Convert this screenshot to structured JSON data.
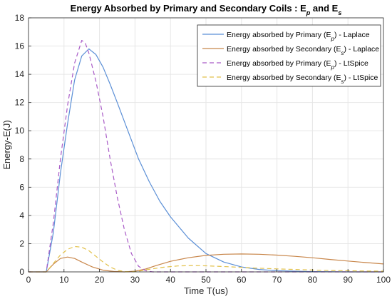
{
  "chart_data": {
    "type": "line",
    "title_parts": [
      {
        "text": "Energy Absorbed by Primary and Secondary Coils : E",
        "sub": false
      },
      {
        "text": "p",
        "sub": true
      },
      {
        "text": " and E",
        "sub": false
      },
      {
        "text": "s",
        "sub": true
      }
    ],
    "xlabel": "Time T(us)",
    "ylabel": "Energy-E(J)",
    "xlim": [
      0,
      100
    ],
    "ylim": [
      0,
      18
    ],
    "xticks": [
      0,
      10,
      20,
      30,
      40,
      50,
      60,
      70,
      80,
      90,
      100
    ],
    "yticks": [
      0,
      2,
      4,
      6,
      8,
      10,
      12,
      14,
      16,
      18
    ],
    "grid": true,
    "legend_position": "top-right",
    "series": [
      {
        "name_parts": [
          {
            "text": "Energy absorbed by Primary (E",
            "sub": false
          },
          {
            "text": "p",
            "sub": true
          },
          {
            "text": ") - Laplace",
            "sub": false
          }
        ],
        "color": "#5b8fd6",
        "dash": "solid",
        "points": [
          [
            0,
            0
          ],
          [
            5,
            0
          ],
          [
            7,
            2.8
          ],
          [
            9,
            7
          ],
          [
            11,
            10.5
          ],
          [
            13,
            13.6
          ],
          [
            15,
            15.3
          ],
          [
            17,
            15.8
          ],
          [
            19,
            15.4
          ],
          [
            21,
            14.5
          ],
          [
            23,
            13.3
          ],
          [
            25,
            12
          ],
          [
            28,
            10
          ],
          [
            31,
            8
          ],
          [
            34,
            6.4
          ],
          [
            37,
            5
          ],
          [
            40,
            3.9
          ],
          [
            45,
            2.4
          ],
          [
            50,
            1.3
          ],
          [
            55,
            0.7
          ],
          [
            60,
            0.35
          ],
          [
            65,
            0.17
          ],
          [
            70,
            0.08
          ],
          [
            80,
            0.02
          ],
          [
            90,
            0
          ],
          [
            100,
            0
          ]
        ]
      },
      {
        "name_parts": [
          {
            "text": "Energy absorbed by Secondary (E",
            "sub": false
          },
          {
            "text": "s",
            "sub": true
          },
          {
            "text": ") - Laplace",
            "sub": false
          }
        ],
        "color": "#c8864a",
        "dash": "solid",
        "points": [
          [
            0,
            0
          ],
          [
            5,
            0
          ],
          [
            7,
            0.55
          ],
          [
            9,
            0.95
          ],
          [
            11,
            1.05
          ],
          [
            13,
            0.95
          ],
          [
            15,
            0.7
          ],
          [
            18,
            0.35
          ],
          [
            21,
            0.12
          ],
          [
            24,
            0.03
          ],
          [
            27,
            0
          ],
          [
            30,
            0.05
          ],
          [
            33,
            0.2
          ],
          [
            36,
            0.45
          ],
          [
            40,
            0.75
          ],
          [
            45,
            1.0
          ],
          [
            50,
            1.17
          ],
          [
            55,
            1.25
          ],
          [
            60,
            1.27
          ],
          [
            65,
            1.25
          ],
          [
            70,
            1.19
          ],
          [
            75,
            1.1
          ],
          [
            80,
            1.0
          ],
          [
            85,
            0.88
          ],
          [
            90,
            0.77
          ],
          [
            95,
            0.66
          ],
          [
            100,
            0.56
          ]
        ]
      },
      {
        "name_parts": [
          {
            "text": "Energy absorbed by Primary (E",
            "sub": false
          },
          {
            "text": "p",
            "sub": true
          },
          {
            "text": ") - LtSpice",
            "sub": false
          }
        ],
        "color": "#a95bc7",
        "dash": "dashed",
        "points": [
          [
            0,
            0
          ],
          [
            5,
            0
          ],
          [
            7,
            3.5
          ],
          [
            9,
            8
          ],
          [
            11,
            11.8
          ],
          [
            13,
            14.8
          ],
          [
            15,
            16.4
          ],
          [
            16,
            16.2
          ],
          [
            17,
            15.5
          ],
          [
            19,
            13.5
          ],
          [
            21,
            11
          ],
          [
            23,
            8
          ],
          [
            25,
            5.3
          ],
          [
            27,
            3
          ],
          [
            29,
            1.3
          ],
          [
            31,
            0.4
          ],
          [
            33,
            0.08
          ],
          [
            35,
            0
          ],
          [
            100,
            0
          ]
        ]
      },
      {
        "name_parts": [
          {
            "text": "Energy absorbed by Secondary (E",
            "sub": false
          },
          {
            "text": "s",
            "sub": true
          },
          {
            "text": ") - LtSpice",
            "sub": false
          }
        ],
        "color": "#e2c14a",
        "dash": "dashed",
        "points": [
          [
            0,
            0
          ],
          [
            5,
            0
          ],
          [
            7,
            0.6
          ],
          [
            9,
            1.2
          ],
          [
            11,
            1.6
          ],
          [
            13,
            1.8
          ],
          [
            15,
            1.75
          ],
          [
            17,
            1.5
          ],
          [
            19,
            1.1
          ],
          [
            21,
            0.7
          ],
          [
            23,
            0.35
          ],
          [
            25,
            0.12
          ],
          [
            27,
            0.02
          ],
          [
            29,
            0
          ],
          [
            31,
            0.05
          ],
          [
            34,
            0.18
          ],
          [
            38,
            0.33
          ],
          [
            42,
            0.42
          ],
          [
            46,
            0.45
          ],
          [
            50,
            0.43
          ],
          [
            55,
            0.38
          ],
          [
            60,
            0.32
          ],
          [
            65,
            0.26
          ],
          [
            70,
            0.21
          ],
          [
            75,
            0.17
          ],
          [
            80,
            0.13
          ],
          [
            85,
            0.1
          ],
          [
            90,
            0.08
          ],
          [
            95,
            0.06
          ],
          [
            100,
            0.05
          ]
        ]
      }
    ]
  }
}
